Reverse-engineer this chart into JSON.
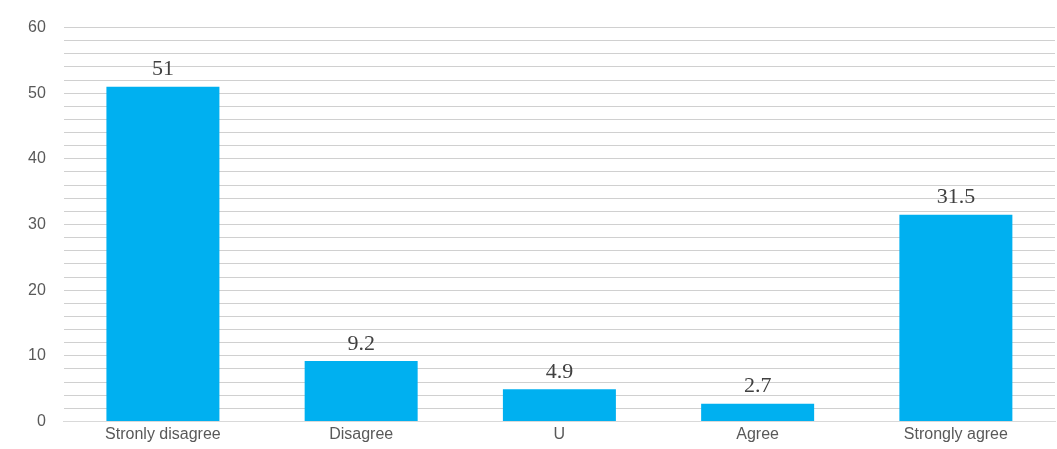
{
  "chart_data": {
    "type": "bar",
    "categories": [
      "Stronly disagree",
      "Disagree",
      "U",
      "Agree",
      "Strongly agree"
    ],
    "values": [
      51,
      9.2,
      4.9,
      2.7,
      31.5
    ],
    "color": "#00b0f0",
    "ylim": [
      0,
      60
    ],
    "yticks": [
      0,
      {
        "value": 2,
        "label": null
      },
      {
        "value": 4,
        "label": null
      },
      {
        "value": 6,
        "label": null
      },
      {
        "value": 8,
        "label": null
      },
      10,
      {
        "value": 12,
        "label": null
      },
      {
        "value": 14,
        "label": null
      },
      {
        "value": 16,
        "label": null
      },
      {
        "value": 18,
        "label": null
      },
      20,
      {
        "value": 22,
        "label": null
      },
      {
        "value": 24,
        "label": null
      },
      {
        "value": 26,
        "label": null
      },
      {
        "value": 28,
        "label": null
      },
      30,
      {
        "value": 32,
        "label": null
      },
      {
        "value": 34,
        "label": null
      },
      {
        "value": 36,
        "label": null
      },
      {
        "value": 38,
        "label": null
      },
      40,
      {
        "value": 42,
        "label": null
      },
      {
        "value": 44,
        "label": null
      },
      {
        "value": 46,
        "label": null
      },
      {
        "value": 48,
        "label": null
      },
      50,
      {
        "value": 52,
        "label": null
      },
      {
        "value": 54,
        "label": null
      },
      {
        "value": 56,
        "label": null
      },
      {
        "value": 58,
        "label": null
      },
      60
    ],
    "grid": "y",
    "data_labels": true,
    "legend": false
  }
}
